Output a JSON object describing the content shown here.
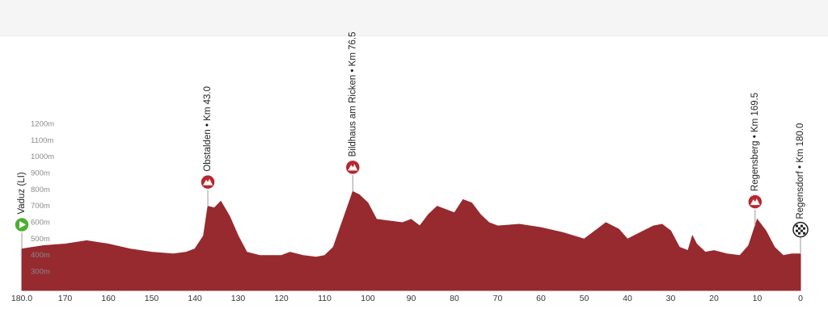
{
  "chart_data": {
    "type": "area",
    "x": [
      180,
      175,
      170,
      165,
      160,
      155,
      150,
      145,
      142,
      140,
      138,
      137,
      135.5,
      134,
      132,
      130,
      128,
      125,
      120,
      118,
      115,
      112,
      110,
      108,
      106,
      104,
      103.5,
      102,
      100,
      98,
      95,
      92,
      90,
      88,
      86,
      84,
      82,
      80,
      78,
      76,
      74,
      72,
      70,
      65,
      60,
      55,
      50,
      47,
      45,
      42,
      40,
      37,
      34,
      32,
      30,
      28,
      26,
      25,
      24,
      22,
      20,
      17,
      14,
      12,
      10,
      8,
      6,
      4,
      2,
      0
    ],
    "values": [
      440,
      460,
      470,
      490,
      470,
      440,
      420,
      410,
      420,
      440,
      520,
      700,
      690,
      730,
      640,
      520,
      420,
      400,
      400,
      420,
      400,
      390,
      400,
      450,
      600,
      750,
      790,
      770,
      720,
      620,
      610,
      600,
      620,
      580,
      650,
      700,
      680,
      660,
      740,
      720,
      650,
      600,
      580,
      590,
      570,
      540,
      500,
      560,
      600,
      560,
      500,
      540,
      580,
      590,
      550,
      450,
      430,
      520,
      470,
      420,
      430,
      410,
      400,
      460,
      620,
      550,
      450,
      400,
      410,
      410
    ],
    "color": "#962a2f",
    "xlim": [
      180,
      0
    ],
    "ylim": [
      187,
      1200
    ],
    "xticks": [
      {
        "value": 180,
        "label": "180.0"
      },
      170,
      160,
      150,
      140,
      130,
      120,
      110,
      100,
      90,
      80,
      70,
      60,
      50,
      40,
      30,
      20,
      10,
      0
    ],
    "yticks": [
      {
        "value": 300,
        "label": "300m"
      },
      {
        "value": 400,
        "label": "400m"
      },
      {
        "value": 500,
        "label": "500m"
      },
      {
        "value": 600,
        "label": "600m"
      },
      {
        "value": 700,
        "label": "700m"
      },
      {
        "value": 800,
        "label": "800m"
      },
      {
        "value": 900,
        "label": "900m"
      },
      {
        "value": 1000,
        "label": "1000m"
      },
      {
        "value": 1100,
        "label": "1100m"
      },
      {
        "value": 1200,
        "label": "1200m"
      }
    ],
    "annotations": [
      {
        "label": "Vaduz (LI)",
        "x": 180
      },
      {
        "label": "Obstalden • Km 43.0",
        "x": 137
      },
      {
        "label": "Bildhaus am Ricken • Km 76.5",
        "x": 103.5
      },
      {
        "label": "Regensberg • Km 169.5",
        "x": 10.5
      },
      {
        "label": "Regensdorf • Km 180.0",
        "x": 0
      }
    ]
  }
}
